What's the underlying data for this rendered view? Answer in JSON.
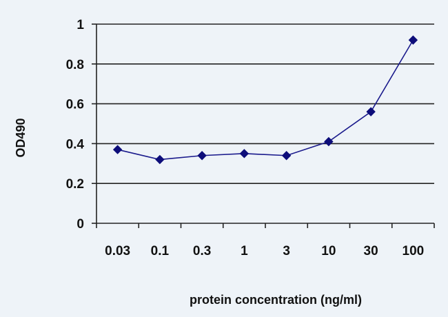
{
  "chart_data": {
    "type": "line",
    "title": "",
    "xlabel": "protein concentration (ng/ml)",
    "ylabel": "OD490",
    "categories": [
      "0.03",
      "0.1",
      "0.3",
      "1",
      "3",
      "10",
      "30",
      "100"
    ],
    "series": [
      {
        "values": [
          0.37,
          0.32,
          0.34,
          0.35,
          0.34,
          0.41,
          0.56,
          0.92
        ]
      }
    ],
    "ylim": [
      0,
      1
    ],
    "yticks": [
      "0",
      "0.2",
      "0.4",
      "0.6",
      "0.8",
      "1"
    ],
    "grid": "horizontal",
    "legend": "none",
    "colors": {
      "series": "#1a1a8c",
      "marker": "#0d0d7a",
      "grid": "#222222",
      "axis": "#222222",
      "background": "#eef3f8"
    }
  }
}
